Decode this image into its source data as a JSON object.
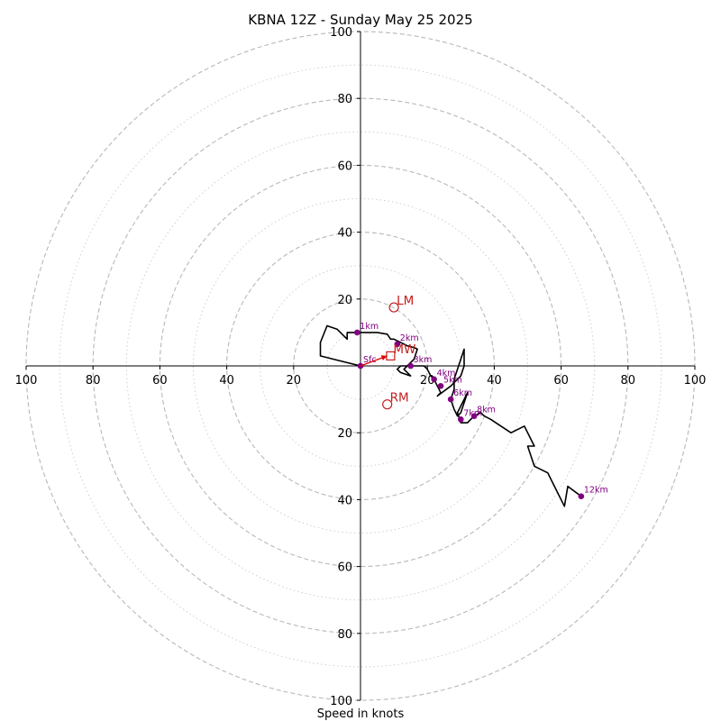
{
  "chart_data": {
    "type": "line",
    "title": "KBNA 12Z - Sunday May 25 2025",
    "xlabel": "Speed in knots",
    "axis_range": [
      -100,
      100
    ],
    "ring_major": [
      20,
      40,
      60,
      80,
      100
    ],
    "ring_minor": [
      10,
      30,
      50,
      70,
      90
    ],
    "x_tick_labels": [
      {
        "value": -100,
        "label": "100"
      },
      {
        "value": -80,
        "label": "80"
      },
      {
        "value": -60,
        "label": "60"
      },
      {
        "value": -40,
        "label": "40"
      },
      {
        "value": -20,
        "label": "20"
      },
      {
        "value": 20,
        "label": "20"
      },
      {
        "value": 40,
        "label": "40"
      },
      {
        "value": 60,
        "label": "60"
      },
      {
        "value": 80,
        "label": "80"
      },
      {
        "value": 100,
        "label": "100"
      }
    ],
    "y_tick_labels": [
      {
        "value": 100,
        "label": "100"
      },
      {
        "value": 80,
        "label": "80"
      },
      {
        "value": 60,
        "label": "60"
      },
      {
        "value": 40,
        "label": "40"
      },
      {
        "value": 20,
        "label": "20"
      },
      {
        "value": -20,
        "label": "20"
      },
      {
        "value": -40,
        "label": "40"
      },
      {
        "value": -60,
        "label": "60"
      },
      {
        "value": -80,
        "label": "80"
      },
      {
        "value": -100,
        "label": "100"
      }
    ],
    "hodograph": {
      "color": "#000000",
      "points": [
        [
          0,
          0
        ],
        [
          -8,
          2
        ],
        [
          -12,
          3
        ],
        [
          -12,
          7
        ],
        [
          -10,
          12
        ],
        [
          -7,
          11
        ],
        [
          -5,
          9
        ],
        [
          -4,
          8
        ],
        [
          -4,
          10
        ],
        [
          -1,
          10
        ],
        [
          5,
          10
        ],
        [
          8,
          9.5
        ],
        [
          9,
          8
        ],
        [
          10,
          8
        ],
        [
          12,
          7
        ],
        [
          14,
          6
        ],
        [
          16,
          5.5
        ],
        [
          17,
          5
        ],
        [
          16,
          2
        ],
        [
          14,
          0
        ],
        [
          13,
          -1
        ],
        [
          15,
          -3
        ],
        [
          12,
          -2
        ],
        [
          11,
          -1
        ],
        [
          12,
          0
        ],
        [
          15,
          0
        ],
        [
          19,
          0
        ],
        [
          20,
          -1
        ],
        [
          21,
          -3
        ],
        [
          22,
          -4
        ],
        [
          23,
          -6
        ],
        [
          24,
          -8
        ],
        [
          23,
          -9
        ],
        [
          27,
          -6
        ],
        [
          30,
          -3
        ],
        [
          31,
          0
        ],
        [
          31,
          5
        ],
        [
          30,
          2
        ],
        [
          29,
          -1
        ],
        [
          28,
          -4
        ],
        [
          28,
          -7
        ],
        [
          27,
          -10
        ],
        [
          28,
          -13
        ],
        [
          29,
          -15
        ],
        [
          30,
          -14
        ],
        [
          32,
          -8
        ],
        [
          30,
          -12
        ],
        [
          29,
          -14
        ],
        [
          30,
          -17
        ],
        [
          32,
          -17
        ],
        [
          34,
          -15
        ],
        [
          36,
          -14
        ],
        [
          37,
          -15
        ],
        [
          39,
          -16
        ],
        [
          42,
          -18
        ],
        [
          45,
          -20
        ],
        [
          49,
          -18
        ],
        [
          52,
          -24
        ],
        [
          50,
          -24
        ],
        [
          52,
          -30
        ],
        [
          56,
          -32
        ],
        [
          58,
          -36
        ],
        [
          61,
          -42
        ],
        [
          62,
          -36
        ],
        [
          66,
          -39
        ]
      ]
    },
    "height_markers": [
      {
        "label": "Sfc",
        "x": 0,
        "y": 0
      },
      {
        "label": "1km",
        "x": -1,
        "y": 10
      },
      {
        "label": "2km",
        "x": 11,
        "y": 6.5
      },
      {
        "label": "3km",
        "x": 15,
        "y": 0
      },
      {
        "label": "4km",
        "x": 22,
        "y": -4
      },
      {
        "label": "5km",
        "x": 24,
        "y": -6
      },
      {
        "label": "6km",
        "x": 27,
        "y": -10
      },
      {
        "label": "7km",
        "x": 30,
        "y": -16
      },
      {
        "label": "8km",
        "x": 34,
        "y": -15
      },
      {
        "label": "12km",
        "x": 66,
        "y": -39
      }
    ],
    "storm_motion": [
      {
        "label": "LM",
        "x": 10,
        "y": 17.5,
        "marker": "circle"
      },
      {
        "label": "MW",
        "x": 9,
        "y": 3,
        "marker": "square"
      },
      {
        "label": "RM",
        "x": 8,
        "y": -11.5,
        "marker": "circle"
      }
    ],
    "shear_vector": {
      "from": [
        0,
        0
      ],
      "to": [
        8,
        3
      ]
    },
    "colors": {
      "hodograph": "#000000",
      "height_marker": "#800080",
      "storm_motion": "#c41e1e",
      "shear_arrow": "#e00000",
      "grid": "#b8b8b8"
    }
  }
}
